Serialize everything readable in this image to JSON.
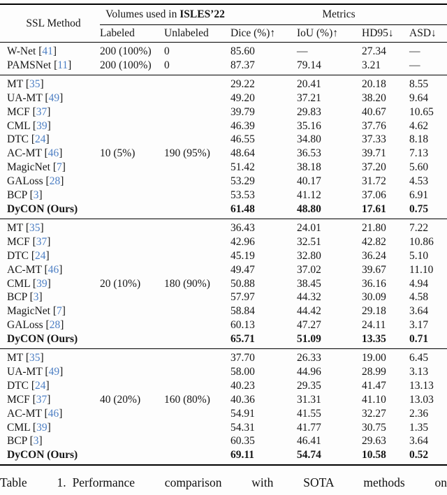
{
  "colors": {
    "citation_blue": "#4d7fc4",
    "rule_black": "#000000"
  },
  "table": {
    "header": {
      "method": "SSL Method",
      "volumes_group_prefix": "Volumes used in ",
      "volumes_group_bold": "ISLES’22",
      "metrics_group": "Metrics",
      "sub_labeled": "Labeled",
      "sub_unlabeled": "Unlabeled",
      "sub_dice": "Dice (%)↑",
      "sub_iou": "IoU (%)↑",
      "sub_hd95": "HD95↓",
      "sub_asd": "ASD↓"
    },
    "sections": [
      {
        "name": "fully-supervised",
        "rows": [
          {
            "method": "W-Net",
            "cite": "41",
            "labeled": "200 (100%)",
            "unlabeled": "0",
            "dice": "85.60",
            "iou": "—",
            "hd95": "27.34",
            "asd": "—"
          },
          {
            "method": "PAMSNet",
            "cite": "11",
            "labeled": "200 (100%)",
            "unlabeled": "0",
            "dice": "87.37",
            "iou": "79.14",
            "hd95": "3.21",
            "asd": "—"
          }
        ]
      },
      {
        "name": "labeled-5-percent",
        "rows": [
          {
            "method": "MT",
            "cite": "35",
            "labeled": "",
            "unlabeled": "",
            "dice": "29.22",
            "iou": "20.41",
            "hd95": "20.18",
            "asd": "8.55"
          },
          {
            "method": "UA-MT",
            "cite": "49",
            "labeled": "",
            "unlabeled": "",
            "dice": "49.20",
            "iou": "37.21",
            "hd95": "38.20",
            "asd": "9.64"
          },
          {
            "method": "MCF",
            "cite": "37",
            "labeled": "",
            "unlabeled": "",
            "dice": "39.79",
            "iou": "29.83",
            "hd95": "40.67",
            "asd": "10.65"
          },
          {
            "method": "CML",
            "cite": "39",
            "labeled": "",
            "unlabeled": "",
            "dice": "46.39",
            "iou": "35.16",
            "hd95": "37.76",
            "asd": "4.62"
          },
          {
            "method": "DTC",
            "cite": "24",
            "labeled": "",
            "unlabeled": "",
            "dice": "46.55",
            "iou": "34.80",
            "hd95": "37.33",
            "asd": "8.18"
          },
          {
            "method": "AC-MT",
            "cite": "46",
            "labeled": "10 (5%)",
            "unlabeled": "190 (95%)",
            "dice": "48.64",
            "iou": "36.53",
            "hd95": "39.71",
            "asd": "7.13"
          },
          {
            "method": "MagicNet",
            "cite": "7",
            "labeled": "",
            "unlabeled": "",
            "dice": "51.42",
            "iou": "38.18",
            "hd95": "37.20",
            "asd": "5.60"
          },
          {
            "method": "GALoss",
            "cite": "28",
            "labeled": "",
            "unlabeled": "",
            "dice": "53.29",
            "iou": "40.17",
            "hd95": "31.72",
            "asd": "4.53"
          },
          {
            "method": "BCP",
            "cite": "3",
            "labeled": "",
            "unlabeled": "",
            "dice": "53.53",
            "iou": "41.12",
            "hd95": "37.06",
            "asd": "6.91"
          },
          {
            "method": "DyCON (Ours)",
            "cite": "",
            "bold": true,
            "labeled": "",
            "unlabeled": "",
            "dice": "61.48",
            "iou": "48.80",
            "hd95": "17.61",
            "asd": "0.75"
          }
        ]
      },
      {
        "name": "labeled-10-percent",
        "rows": [
          {
            "method": "MT",
            "cite": "35",
            "labeled": "",
            "unlabeled": "",
            "dice": "36.43",
            "iou": "24.01",
            "hd95": "21.80",
            "asd": "7.22"
          },
          {
            "method": "MCF",
            "cite": "37",
            "labeled": "",
            "unlabeled": "",
            "dice": "42.96",
            "iou": "32.51",
            "hd95": "42.82",
            "asd": "10.86"
          },
          {
            "method": "DTC",
            "cite": "24",
            "labeled": "",
            "unlabeled": "",
            "dice": "45.19",
            "iou": "32.80",
            "hd95": "36.24",
            "asd": "5.10"
          },
          {
            "method": "AC-MT",
            "cite": "46",
            "labeled": "",
            "unlabeled": "",
            "dice": "49.47",
            "iou": "37.02",
            "hd95": "39.67",
            "asd": "11.10"
          },
          {
            "method": "CML",
            "cite": "39",
            "labeled": "20 (10%)",
            "unlabeled": "180 (90%)",
            "dice": "50.88",
            "iou": "38.45",
            "hd95": "36.16",
            "asd": "4.94"
          },
          {
            "method": "BCP",
            "cite": "3",
            "labeled": "",
            "unlabeled": "",
            "dice": "57.97",
            "iou": "44.32",
            "hd95": "30.09",
            "asd": "4.58"
          },
          {
            "method": "MagicNet",
            "cite": "7",
            "labeled": "",
            "unlabeled": "",
            "dice": "58.84",
            "iou": "44.42",
            "hd95": "29.18",
            "asd": "3.64"
          },
          {
            "method": "GALoss",
            "cite": "28",
            "labeled": "",
            "unlabeled": "",
            "dice": "60.13",
            "iou": "47.27",
            "hd95": "24.11",
            "asd": "3.17"
          },
          {
            "method": "DyCON (Ours)",
            "cite": "",
            "bold": true,
            "labeled": "",
            "unlabeled": "",
            "dice": "65.71",
            "iou": "51.09",
            "hd95": "13.35",
            "asd": "0.71"
          }
        ]
      },
      {
        "name": "labeled-20-percent",
        "rows": [
          {
            "method": "MT",
            "cite": "35",
            "labeled": "",
            "unlabeled": "",
            "dice": "37.70",
            "iou": "26.33",
            "hd95": "19.00",
            "asd": "6.45"
          },
          {
            "method": "UA-MT",
            "cite": "49",
            "labeled": "",
            "unlabeled": "",
            "dice": "58.00",
            "iou": "44.96",
            "hd95": "28.99",
            "asd": "3.13"
          },
          {
            "method": "DTC",
            "cite": "24",
            "labeled": "",
            "unlabeled": "",
            "dice": "40.23",
            "iou": "29.35",
            "hd95": "41.47",
            "asd": "13.13"
          },
          {
            "method": "MCF",
            "cite": "37",
            "labeled": "40 (20%)",
            "unlabeled": "160 (80%)",
            "dice": "40.36",
            "iou": "31.31",
            "hd95": "41.10",
            "asd": "13.03"
          },
          {
            "method": "AC-MT",
            "cite": "46",
            "labeled": "",
            "unlabeled": "",
            "dice": "54.91",
            "iou": "41.55",
            "hd95": "32.27",
            "asd": "2.36"
          },
          {
            "method": "CML",
            "cite": "39",
            "labeled": "",
            "unlabeled": "",
            "dice": "54.31",
            "iou": "41.77",
            "hd95": "30.75",
            "asd": "1.35"
          },
          {
            "method": "BCP",
            "cite": "3",
            "labeled": "",
            "unlabeled": "",
            "dice": "60.35",
            "iou": "46.41",
            "hd95": "29.63",
            "asd": "3.64"
          },
          {
            "method": "DyCON (Ours)",
            "cite": "",
            "bold": true,
            "labeled": "",
            "unlabeled": "",
            "dice": "69.11",
            "iou": "54.74",
            "hd95": "10.58",
            "asd": "0.52"
          }
        ]
      }
    ]
  },
  "caption": {
    "label": "Table 1.",
    "text": "Performance comparison with SOTA methods on"
  }
}
